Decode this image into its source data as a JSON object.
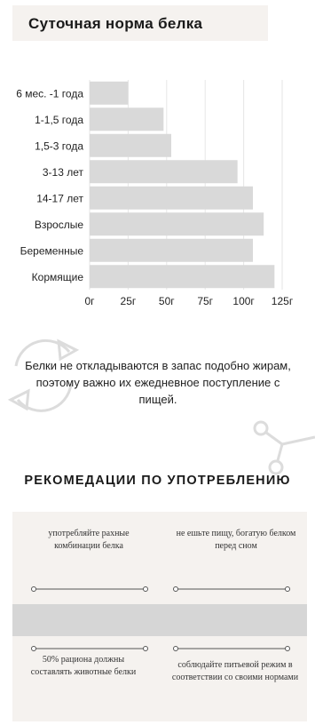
{
  "header": {
    "title": "Суточная норма белка"
  },
  "chart_data": {
    "type": "bar",
    "orientation": "horizontal",
    "categories": [
      "6 мес. -1 года",
      "1-1,5 года",
      "1,5-3 года",
      "3-13 лет",
      "14-17 лет",
      "Взрослые",
      "Беременные",
      "Кормящие"
    ],
    "values": [
      25,
      48,
      53,
      96,
      106,
      113,
      106,
      120
    ],
    "x_ticks": [
      "0г",
      "25г",
      "50г",
      "75г",
      "100г",
      "125г"
    ],
    "xlim": [
      0,
      125
    ],
    "grid": true,
    "bar_color": "#d9d9d9",
    "grid_color": "#e6e6e6"
  },
  "note": {
    "text": "Белки не откладываются в запас подобно жирам, поэтому важно их ежедневное поступление с пищей."
  },
  "recommendations": {
    "title": "РЕКОМЕДАЦИИ ПО УПОТРЕБЛЕНИЮ",
    "items": [
      "употребляйте рахные комбинации белка",
      "не ешьте пищу, богатую белком перед сном",
      "50% рациона должны составлять животные белки",
      "соблюдайте питьевой режим в соответствии со своими нормами"
    ]
  },
  "colors": {
    "panel": "#f5f2ef",
    "band": "#d6d6d6",
    "icon": "#dcdcdc"
  },
  "icons": {
    "cycle": "recycle-arrows-icon",
    "branch": "node-branch-icon"
  }
}
